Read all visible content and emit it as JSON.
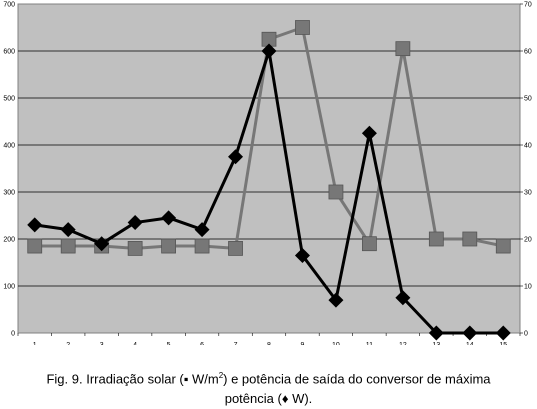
{
  "chart_data": {
    "type": "line",
    "x": [
      1,
      2,
      3,
      4,
      5,
      6,
      7,
      8,
      9,
      10,
      11,
      12,
      13,
      14,
      15
    ],
    "y_left_ticks": [
      "0",
      "100",
      "200",
      "300",
      "400",
      "500",
      "600",
      "700"
    ],
    "y_right_ticks": [
      "0",
      "10",
      "20",
      "30",
      "40",
      "50",
      "60",
      "70"
    ],
    "ylim_left": [
      0,
      700
    ],
    "ylim_right": [
      0,
      70
    ],
    "grid": "horizontal",
    "series": [
      {
        "axis": "left",
        "marker": "square",
        "color": "#777777",
        "values": [
          185,
          185,
          185,
          180,
          185,
          185,
          180,
          625,
          650,
          300,
          190,
          605,
          200,
          200,
          185
        ]
      },
      {
        "axis": "right",
        "marker": "diamond",
        "color": "#000000",
        "values": [
          23,
          22,
          19,
          23.5,
          24.5,
          22,
          37.5,
          60,
          16.5,
          7,
          42.5,
          7.5,
          0,
          0,
          0
        ]
      }
    ]
  },
  "caption": {
    "line1_a": "Fig. 9. Irradiação solar (",
    "line1_square": "▪",
    "line1_unit": " W/m",
    "line1_sup": "2",
    "line1_b": ") e potência de saída do conversor  de máxima",
    "line2_a": "potência (",
    "line2_diamond": "♦",
    "line2_b": " W)."
  }
}
